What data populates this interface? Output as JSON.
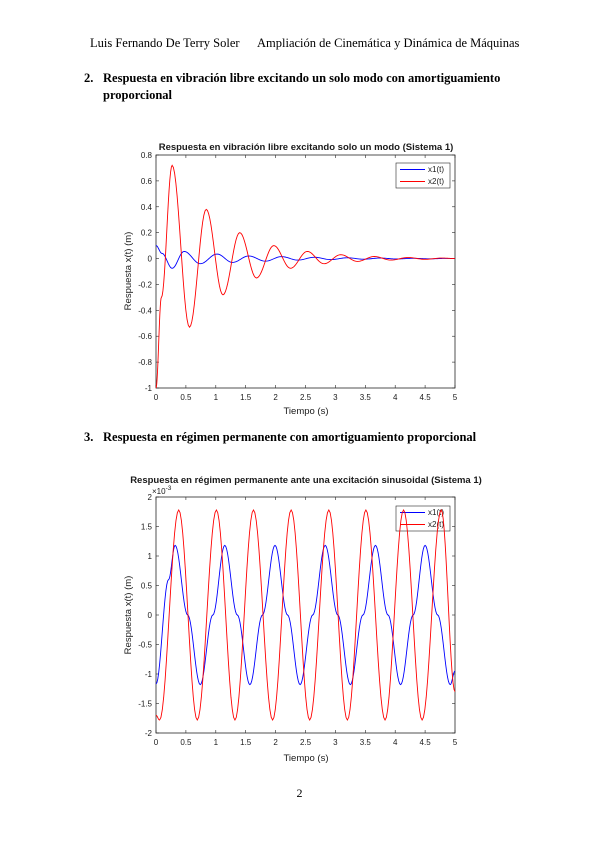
{
  "header": {
    "author": "Luis Fernando De Terry Soler",
    "course": "Ampliación de Cinemática y Dinámica de Máquinas"
  },
  "sections": [
    {
      "number": "2.",
      "line1": "Respuesta en vibración libre excitando un solo modo con amortiguamiento",
      "line2": "proporcional"
    },
    {
      "number": "3.",
      "line1": "Respuesta en régimen permanente con amortiguamiento proporcional"
    }
  ],
  "page_number": "2",
  "colors": {
    "series1": "#0000ff",
    "series2": "#ff0000"
  },
  "chart_data": [
    {
      "type": "line",
      "title": "Respuesta en vibración libre excitando solo un modo (Sistema 1)",
      "xlabel": "Tiempo (s)",
      "ylabel": "Respuesta x(t) (m)",
      "xlim": [
        0,
        5
      ],
      "ylim": [
        -1,
        0.8
      ],
      "xticks": [
        "0",
        "0.5",
        "1",
        "1.5",
        "2",
        "2.5",
        "3",
        "3.5",
        "4",
        "4.5",
        "5"
      ],
      "yticks": [
        "-1",
        "-0.8",
        "-0.6",
        "-0.4",
        "-0.2",
        "0",
        "0.2",
        "0.4",
        "0.6",
        "0.8"
      ],
      "grid": false,
      "legend": "top-right",
      "series": [
        {
          "name": "x1(t)",
          "x": [
            0,
            0.1,
            0.27,
            0.47,
            0.74,
            1.02,
            1.28,
            1.55,
            1.83,
            2.1,
            2.37,
            2.65,
            2.92,
            3.2,
            3.47,
            3.75,
            4.02,
            4.3,
            4.57,
            4.85,
            5.0
          ],
          "values": [
            0.1,
            0.04,
            -0.075,
            0.055,
            -0.04,
            0.035,
            -0.03,
            0.02,
            -0.02,
            0.015,
            -0.012,
            0.01,
            -0.008,
            0.006,
            -0.005,
            0.004,
            -0.003,
            0.002,
            -0.002,
            0.001,
            0.0
          ]
        },
        {
          "name": "x2(t)",
          "x": [
            0,
            0.09,
            0.27,
            0.56,
            0.84,
            1.12,
            1.4,
            1.68,
            1.97,
            2.25,
            2.53,
            2.81,
            3.09,
            3.37,
            3.65,
            3.93,
            4.21,
            4.5,
            4.78,
            5.0
          ],
          "values": [
            -1.0,
            -0.3,
            0.72,
            -0.53,
            0.38,
            -0.28,
            0.2,
            -0.15,
            0.1,
            -0.075,
            0.055,
            -0.04,
            0.03,
            -0.022,
            0.016,
            -0.012,
            0.008,
            -0.006,
            0.004,
            0.0
          ]
        }
      ]
    },
    {
      "type": "line",
      "title": "Respuesta en régimen permanente ante una excitación sinusoidal (Sistema 1)",
      "xlabel": "Tiempo (s)",
      "ylabel": "Respuesta x(t) (m)",
      "y_multiplier": "×10",
      "y_exponent": "-3",
      "xlim": [
        0,
        5
      ],
      "ylim": [
        -2,
        2
      ],
      "xticks": [
        "0",
        "0.5",
        "1",
        "1.5",
        "2",
        "2.5",
        "3",
        "3.5",
        "4",
        "4.5",
        "5"
      ],
      "yticks": [
        "-2",
        "-1.5",
        "-1",
        "-0.5",
        "0",
        "0.5",
        "1",
        "1.5",
        "2"
      ],
      "grid": false,
      "legend": "top-right",
      "series": [
        {
          "name": "x1(t)",
          "x": [
            0,
            0.21,
            0.32,
            0.53,
            0.74,
            0.95,
            1.15,
            1.36,
            1.57,
            1.78,
            1.99,
            2.2,
            2.41,
            2.62,
            2.83,
            3.04,
            3.25,
            3.46,
            3.67,
            3.88,
            4.09,
            4.3,
            4.5,
            4.71,
            4.92,
            5.0
          ],
          "values": [
            -1.17,
            0.6,
            1.18,
            0.0,
            -1.18,
            0.0,
            1.18,
            0.0,
            -1.18,
            0.0,
            1.18,
            0.0,
            -1.18,
            0.0,
            1.18,
            0.0,
            -1.18,
            0.0,
            1.18,
            0.0,
            -1.18,
            0.0,
            1.18,
            0.0,
            -1.18,
            -0.95
          ],
          "amp": 1.18
        },
        {
          "name": "x2(t)",
          "x": [
            0,
            0.06,
            0.38,
            0.69,
            1.01,
            1.32,
            1.63,
            1.95,
            2.26,
            2.57,
            2.89,
            3.2,
            3.51,
            3.83,
            4.14,
            4.45,
            4.77,
            5.0
          ],
          "values": [
            -1.7,
            -1.78,
            1.78,
            -1.78,
            1.78,
            -1.78,
            1.78,
            -1.78,
            1.78,
            -1.78,
            1.78,
            -1.78,
            1.78,
            -1.78,
            1.78,
            -1.78,
            1.78,
            -1.3
          ],
          "amp": 1.78
        }
      ]
    }
  ]
}
